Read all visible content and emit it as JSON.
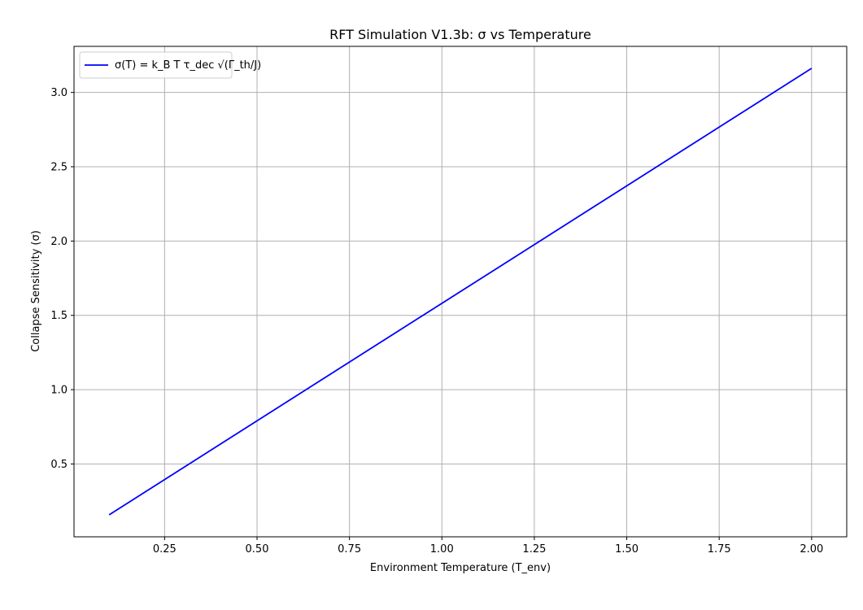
{
  "chart_data": {
    "type": "line",
    "title": "RFT Simulation V1.3b: σ vs Temperature",
    "xlabel": "Environment Temperature (T_env)",
    "ylabel": "Collapse Sensitivity (σ)",
    "xlim": [
      0.005,
      2.095
    ],
    "ylim": [
      0.01,
      3.31
    ],
    "x_ticks": [
      0.25,
      0.5,
      0.75,
      1.0,
      1.25,
      1.5,
      1.75,
      2.0
    ],
    "x_tick_labels": [
      "0.25",
      "0.50",
      "0.75",
      "1.00",
      "1.25",
      "1.50",
      "1.75",
      "2.00"
    ],
    "y_ticks": [
      0.5,
      1.0,
      1.5,
      2.0,
      2.5,
      3.0
    ],
    "y_tick_labels": [
      "0.5",
      "1.0",
      "1.5",
      "2.0",
      "2.5",
      "3.0"
    ],
    "grid": true,
    "legend_position": "top-left",
    "series": [
      {
        "name": "σ(T) = k_B T τ_dec √(Γ_th/J)",
        "color": "#0000ff",
        "x": [
          0.1,
          2.0
        ],
        "y": [
          0.158,
          3.162
        ]
      }
    ]
  }
}
